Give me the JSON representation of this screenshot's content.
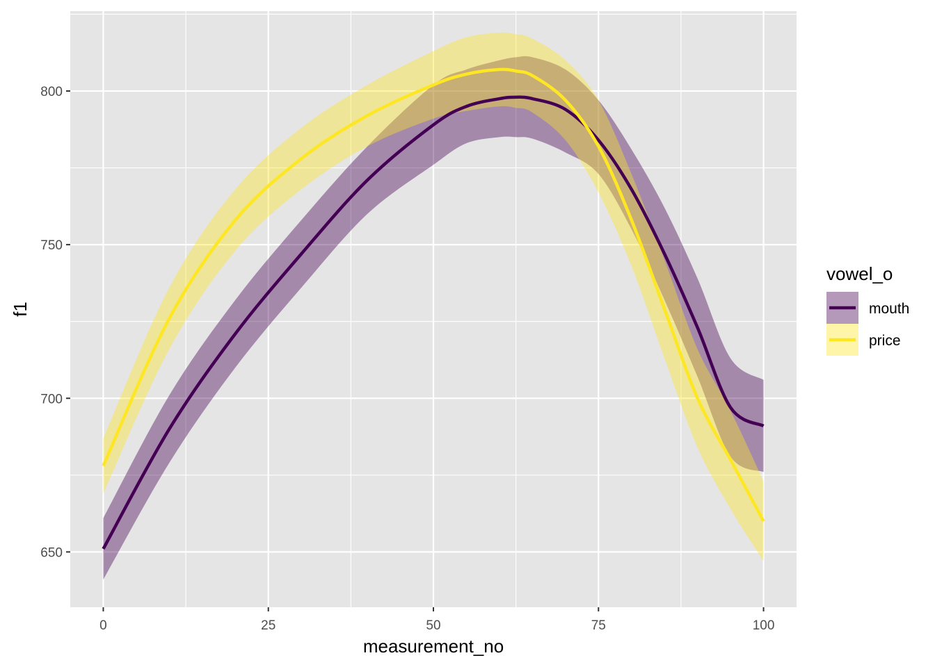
{
  "chart_data": {
    "type": "line",
    "title": "",
    "xlabel": "measurement_no",
    "ylabel": "f1",
    "xlim": [
      -5,
      105
    ],
    "ylim": [
      632,
      826
    ],
    "x_ticks": [
      0,
      25,
      50,
      75,
      100
    ],
    "x_tick_labels": [
      "0",
      "25",
      "50",
      "75",
      "100"
    ],
    "y_ticks": [
      650,
      700,
      750,
      800
    ],
    "y_tick_labels": [
      "650",
      "700",
      "750",
      "800"
    ],
    "grid": true,
    "legend": {
      "title": "vowel_o",
      "position": "right"
    },
    "x": [
      0,
      10,
      20,
      30,
      40,
      50,
      55,
      60,
      62.5,
      65,
      70,
      75,
      80,
      85,
      90,
      95,
      100
    ],
    "series": [
      {
        "name": "mouth",
        "color": "#440154",
        "values": [
          651,
          690,
          721,
          747,
          771,
          789,
          795,
          797.5,
          798,
          797.5,
          794,
          784,
          768,
          747,
          723,
          697,
          691
        ],
        "lower": [
          641,
          679,
          710,
          736,
          760,
          776,
          783,
          785,
          785,
          784.5,
          780,
          773,
          755,
          732,
          707,
          681,
          676
        ],
        "upper": [
          661,
          701,
          732,
          758,
          782,
          802,
          807,
          810,
          811,
          811,
          807,
          797,
          781,
          762,
          739,
          713,
          706
        ]
      },
      {
        "name": "price",
        "color": "#fde725",
        "values": [
          678,
          726,
          758,
          778,
          792,
          802,
          805.5,
          807,
          806.5,
          805,
          797,
          782,
          758,
          729,
          700,
          680,
          660
        ],
        "lower": [
          669,
          716,
          748,
          768,
          782,
          791,
          793.5,
          795,
          794.5,
          793,
          784,
          767,
          743,
          713,
          684,
          664,
          647
        ],
        "upper": [
          687,
          736,
          768,
          788,
          802,
          813,
          817.5,
          819,
          818.5,
          817,
          810,
          797,
          773,
          745,
          716,
          696,
          673
        ]
      }
    ]
  }
}
